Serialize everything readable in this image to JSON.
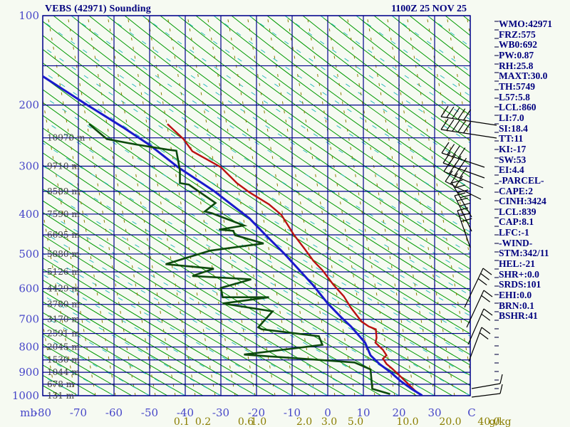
{
  "window": {
    "title": "VEBS (42971) Sounding",
    "datetime": "1100Z 25 NOV 25"
  },
  "indices_panel": {
    "items": [
      "WMO:42971",
      "FRZ:575",
      "WB0:692",
      "PW:0.87",
      "RH:25.8",
      "MAXT:30.0",
      "TH:5749",
      "L57:5.8",
      "LCL:860",
      "LI:7.0",
      "SI:18.4",
      "TT:11",
      "KI:-17",
      "SW:53",
      "EI:4.4",
      "-PARCEL-",
      "CAPE:2",
      "CINH:3424",
      "LCL:839",
      "CAP:8.1",
      "LFC:-1",
      "-WIND-",
      "STM:342/11",
      "HEL:-21",
      "SHR+:0.0",
      "SRDS:101",
      "EHI:0.0",
      "BRN:0.1",
      "BSHR:41"
    ]
  },
  "colors": {
    "grid": "#00008b",
    "axis_text": "#4646c8",
    "dry_adiabat": "#009900",
    "moist_adiabat": "#2bbcbc",
    "mixing_ratio": "#8a7d00",
    "temperature": "#bb1111",
    "dewpoint": "#0d4a0d",
    "wetbulb": "#1a1acc",
    "height_text": "#3f3f3f",
    "panel_text": "#00007e",
    "barb": "#000000",
    "background": "#f6faf2"
  },
  "chart_data": {
    "type": "line",
    "diagram_style": "stuve-sounding",
    "title": "VEBS (42971) Sounding",
    "station": "VEBS (42971)",
    "valid": "1100Z 25 NOV 25",
    "x_axis": {
      "unit": "C",
      "min": -80,
      "max": 40,
      "tick_step": 10,
      "tick_labels": [
        "-80",
        "-70",
        "-60",
        "-50",
        "-40",
        "-30",
        "-20",
        "-10",
        "0",
        "10",
        "20",
        "30"
      ],
      "pressure_unit_label": "mb"
    },
    "y_axis": {
      "unit": "mb",
      "min": 100,
      "max": 1000,
      "gridline_step_mb": 50,
      "tick_labels": [
        100,
        200,
        300,
        400,
        500,
        600,
        700,
        800,
        900,
        1000
      ]
    },
    "height_labels": [
      [
        250,
        "10970 m"
      ],
      [
        300,
        "9710 m"
      ],
      [
        350,
        "8589 m"
      ],
      [
        400,
        "7590 m"
      ],
      [
        450,
        "6695 m"
      ],
      [
        500,
        "5880 m"
      ],
      [
        550,
        "5126 m"
      ],
      [
        600,
        "4429 m"
      ],
      [
        650,
        "3780 m"
      ],
      [
        700,
        "3170 m"
      ],
      [
        750,
        "2591 m"
      ],
      [
        800,
        "2045 m"
      ],
      [
        850,
        "1530 m"
      ],
      [
        900,
        "1044 m"
      ],
      [
        950,
        "678 m"
      ],
      [
        1000,
        "131 m"
      ]
    ],
    "mixing_ratio_axis": {
      "unit": "g/kg",
      "labels": [
        [
          "0.1",
          255
        ],
        [
          "0.2",
          285
        ],
        [
          "0.6",
          345
        ],
        [
          "1.0",
          363
        ],
        [
          "2.0",
          427
        ],
        [
          "3.0",
          462
        ],
        [
          "5.0",
          499
        ],
        [
          "10.0",
          572
        ],
        [
          "20.0",
          632
        ],
        [
          "40.0",
          686
        ]
      ]
    },
    "series": [
      {
        "name": "temperature",
        "color_key": "temperature",
        "width": 2.4,
        "points_t_p": [
          [
            -45,
            228
          ],
          [
            -40.5,
            252
          ],
          [
            -38,
            273
          ],
          [
            -30,
            302
          ],
          [
            -25.5,
            333
          ],
          [
            -22,
            352
          ],
          [
            -16.5,
            378
          ],
          [
            -13,
            402
          ],
          [
            -9.5,
            450
          ],
          [
            -6.5,
            486
          ],
          [
            -4,
            519
          ],
          [
            -1.5,
            545
          ],
          [
            1.5,
            587
          ],
          [
            4.5,
            624
          ],
          [
            6.5,
            661
          ],
          [
            9.5,
            708
          ],
          [
            11.5,
            725
          ],
          [
            13.5,
            735
          ],
          [
            13.7,
            766
          ],
          [
            13.4,
            784
          ],
          [
            15.5,
            811
          ],
          [
            16.5,
            832
          ],
          [
            15.5,
            845
          ],
          [
            16.5,
            866
          ],
          [
            18,
            884
          ],
          [
            20,
            911
          ],
          [
            22,
            940
          ],
          [
            24.5,
            978
          ],
          [
            26,
            995
          ]
        ]
      },
      {
        "name": "wetbulb",
        "color_key": "wetbulb",
        "width": 3,
        "points_t_p": [
          [
            -80.5,
            161
          ],
          [
            -67.5,
            200
          ],
          [
            -57.5,
            233
          ],
          [
            -50,
            262
          ],
          [
            -42,
            302
          ],
          [
            -32,
            349
          ],
          [
            -22,
            410
          ],
          [
            -17.5,
            450
          ],
          [
            -12.5,
            496
          ],
          [
            -8.5,
            539
          ],
          [
            -4,
            591
          ],
          [
            0,
            647
          ],
          [
            4,
            696
          ],
          [
            6.5,
            725
          ],
          [
            10.5,
            784
          ],
          [
            12,
            832
          ],
          [
            14.5,
            866
          ],
          [
            17.5,
            898
          ],
          [
            20.5,
            937
          ],
          [
            23.5,
            970
          ],
          [
            26.5,
            999
          ]
        ]
      },
      {
        "name": "dewpoint",
        "color_key": "dewpoint",
        "width": 2.6,
        "points_t_p": [
          [
            -67,
            228
          ],
          [
            -62,
            252
          ],
          [
            -54,
            261
          ],
          [
            -45,
            270
          ],
          [
            -42.5,
            272
          ],
          [
            -41.5,
            308
          ],
          [
            -41.5,
            333
          ],
          [
            -39,
            336
          ],
          [
            -31.5,
            375
          ],
          [
            -34.5,
            394
          ],
          [
            -32.5,
            398
          ],
          [
            -23.5,
            427
          ],
          [
            -30.5,
            437
          ],
          [
            -26.5,
            440
          ],
          [
            -26,
            451
          ],
          [
            -18,
            472
          ],
          [
            -33,
            491
          ],
          [
            -45.5,
            528
          ],
          [
            -32,
            541
          ],
          [
            -38,
            562
          ],
          [
            -21.5,
            572
          ],
          [
            -30,
            598
          ],
          [
            -29.5,
            627
          ],
          [
            -16.5,
            627
          ],
          [
            -29.5,
            647
          ],
          [
            -15.5,
            673
          ],
          [
            -19.5,
            728
          ],
          [
            -18.5,
            735
          ],
          [
            -2.5,
            760
          ],
          [
            -1.5,
            792
          ],
          [
            -23.5,
            829
          ],
          [
            7.5,
            860
          ],
          [
            12,
            888
          ],
          [
            12.5,
            970
          ],
          [
            17.5,
            993
          ]
        ]
      }
    ],
    "wind_barbs": [
      {
        "bx": 697,
        "by": 176,
        "dx": -78,
        "dy": -12,
        "f": 5,
        "fv": [
          10,
          -15
        ]
      },
      {
        "bx": 697,
        "by": 194,
        "dx": -78,
        "dy": -12,
        "f": 5,
        "fv": [
          10,
          -15
        ]
      },
      {
        "bx": 680,
        "by": 235,
        "dx": -60,
        "dy": -20,
        "f": 4,
        "fv": [
          10,
          -15
        ]
      },
      {
        "bx": 680,
        "by": 250,
        "dx": -58,
        "dy": -21,
        "f": 4,
        "fv": [
          10,
          -15
        ]
      },
      {
        "bx": 678,
        "by": 264,
        "dx": -55,
        "dy": -23,
        "f": 4,
        "fv": [
          10,
          -15
        ]
      },
      {
        "bx": 675,
        "by": 280,
        "dx": -50,
        "dy": -25,
        "f": 3,
        "fv": [
          10,
          -15
        ]
      },
      {
        "bx": 662,
        "by": 305,
        "dx": -28,
        "dy": -48,
        "f": 4,
        "fv": [
          15,
          -4
        ]
      },
      {
        "bx": 662,
        "by": 325,
        "dx": -24,
        "dy": -50,
        "f": 3,
        "fv": [
          15,
          -4
        ]
      },
      {
        "bx": 660,
        "by": 348,
        "dx": -18,
        "dy": -52,
        "f": 3,
        "fv": [
          15,
          -4
        ]
      },
      {
        "bx": 652,
        "by": 432,
        "dx": 26,
        "dy": -55,
        "f": 3,
        "fv": [
          12,
          9
        ]
      },
      {
        "bx": 655,
        "by": 460,
        "dx": 24,
        "dy": -52,
        "f": 2,
        "fv": [
          12,
          9
        ]
      },
      {
        "bx": 657,
        "by": 484,
        "dx": 22,
        "dy": -50,
        "f": 2,
        "fv": [
          12,
          9
        ]
      },
      {
        "bx": 658,
        "by": 508,
        "dx": 18,
        "dy": -48,
        "f": 2,
        "fv": [
          12,
          9
        ]
      },
      {
        "bx": 662,
        "by": 546,
        "dx": 40,
        "dy": -7,
        "f": 1,
        "fv": [
          3,
          -13
        ]
      },
      {
        "bx": 662,
        "by": 558,
        "dx": 40,
        "dy": -5,
        "f": 1,
        "fv": [
          3,
          -13
        ]
      }
    ]
  }
}
